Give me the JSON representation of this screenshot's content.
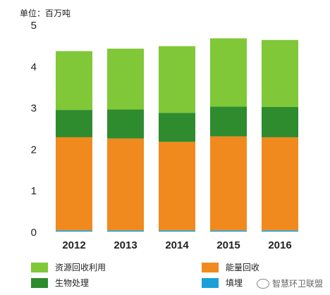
{
  "unit_label": "单位：百万吨",
  "watermark": "智慧环卫联盟",
  "colors": {
    "recycle": "#80C838",
    "energy": "#F08A1E",
    "bio": "#2E8B2E",
    "landfill": "#1AA0D8"
  },
  "chart_data": {
    "type": "bar",
    "stacked": true,
    "categories": [
      "2012",
      "2013",
      "2014",
      "2015",
      "2016"
    ],
    "series": [
      {
        "name": "填埋",
        "values": [
          0.03,
          0.03,
          0.03,
          0.03,
          0.03
        ]
      },
      {
        "name": "能量回收",
        "values": [
          2.25,
          2.22,
          2.14,
          2.27,
          2.25
        ]
      },
      {
        "name": "生物处理",
        "values": [
          0.66,
          0.7,
          0.7,
          0.72,
          0.73
        ]
      },
      {
        "name": "资源回收利用",
        "values": [
          1.42,
          1.47,
          1.61,
          1.65,
          1.62
        ]
      }
    ],
    "yticks": [
      "0",
      "1",
      "2",
      "3",
      "4",
      "5"
    ],
    "ylim": [
      0,
      5
    ],
    "legend": [
      {
        "name": "资源回收利用",
        "color": "#80C838"
      },
      {
        "name": "生物处理",
        "color": "#2E8B2E"
      },
      {
        "name": "能量回收",
        "color": "#F08A1E"
      },
      {
        "name": "填埋",
        "color": "#1AA0D8"
      }
    ]
  }
}
